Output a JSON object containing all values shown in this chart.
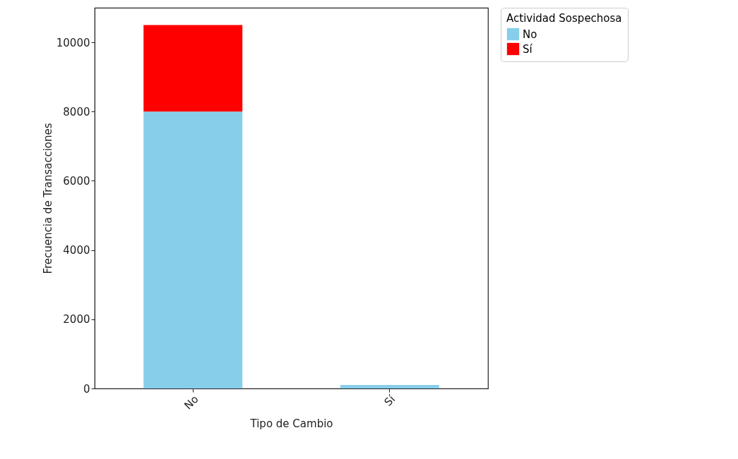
{
  "chart_data": {
    "type": "bar",
    "stacked": true,
    "xlabel": "Tipo de Cambio",
    "ylabel": "Frecuencia de Transacciones",
    "legend_title": "Actividad Sospechosa",
    "legend": "top right",
    "categories": [
      "No",
      "Sí"
    ],
    "series": [
      {
        "name": "No",
        "color": "#87ceeb",
        "values": [
          8000,
          100
        ]
      },
      {
        "name": "Sí",
        "color": "#ff0000",
        "values": [
          2500,
          0
        ]
      }
    ],
    "ylim": [
      0,
      11000
    ],
    "yticks": [
      0,
      2000,
      4000,
      6000,
      8000,
      10000
    ],
    "grid": false
  }
}
